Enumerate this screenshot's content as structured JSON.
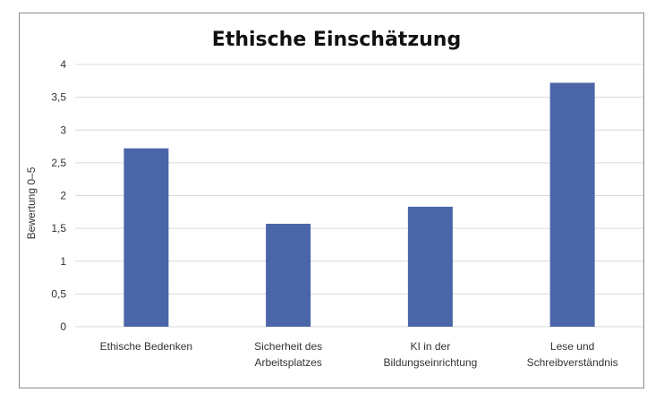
{
  "chart_data": {
    "type": "bar",
    "title": "Ethische Einschätzung",
    "ylabel": "Bewertung 0–5",
    "xlabel": "",
    "categories": [
      [
        "Ethische Bedenken"
      ],
      [
        "Sicherheit des",
        "Arbeitsplatzes"
      ],
      [
        "KI in der",
        "Bildungseinrichtung"
      ],
      [
        "Lese und",
        "Schreibverständnis"
      ]
    ],
    "values": [
      2.72,
      1.57,
      1.83,
      3.72
    ],
    "ylim": [
      0,
      4
    ],
    "yticks": [
      "0",
      "0,5",
      "1",
      "1,5",
      "2",
      "2,5",
      "3",
      "3,5",
      "4"
    ],
    "grid": true,
    "bar_color": "#4a66a8",
    "grid_color": "#d9d9d9"
  }
}
